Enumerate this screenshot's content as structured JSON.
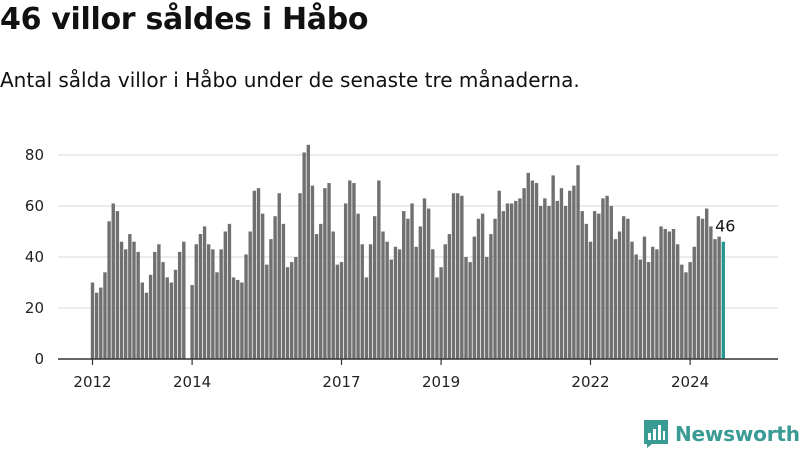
{
  "title": "46 villor såldes i Håbo",
  "subtitle": "Antal sålda villor i Håbo under de senaste tre månaderna.",
  "brand": {
    "name": "Newsworthy",
    "color": "#3a9a94",
    "icon": "newsworthy-logo-icon"
  },
  "colors": {
    "bar": "#707070",
    "highlight": "#2a9690",
    "grid": "#d9d9d9",
    "axis": "#333333"
  },
  "chart_data": {
    "type": "bar",
    "title": "",
    "xlabel": "",
    "ylabel": "",
    "ylim": [
      0,
      85
    ],
    "yticks": [
      0,
      20,
      40,
      60,
      80
    ],
    "grid": true,
    "x_start": "2012-01",
    "frequency": "monthly",
    "xticks": [
      {
        "label": "2012",
        "index": 0
      },
      {
        "label": "2014",
        "index": 24
      },
      {
        "label": "2017",
        "index": 60
      },
      {
        "label": "2019",
        "index": 84
      },
      {
        "label": "2022",
        "index": 120
      },
      {
        "label": "2024",
        "index": 144
      }
    ],
    "values": [
      30,
      26,
      28,
      34,
      54,
      61,
      58,
      46,
      43,
      49,
      46,
      42,
      30,
      26,
      33,
      42,
      45,
      38,
      32,
      30,
      35,
      42,
      46,
      null,
      29,
      45,
      49,
      52,
      45,
      43,
      34,
      43,
      50,
      53,
      32,
      31,
      30,
      41,
      50,
      66,
      67,
      57,
      37,
      47,
      56,
      65,
      53,
      36,
      38,
      40,
      65,
      81,
      84,
      68,
      49,
      53,
      67,
      69,
      50,
      37,
      38,
      61,
      70,
      69,
      57,
      45,
      32,
      45,
      56,
      70,
      50,
      46,
      39,
      44,
      43,
      58,
      55,
      61,
      44,
      52,
      63,
      59,
      43,
      32,
      36,
      45,
      49,
      65,
      65,
      64,
      40,
      38,
      48,
      55,
      57,
      40,
      49,
      55,
      66,
      58,
      61,
      61,
      62,
      63,
      67,
      73,
      70,
      69,
      60,
      63,
      60,
      72,
      62,
      67,
      60,
      66,
      68,
      76,
      58,
      53,
      46,
      58,
      57,
      63,
      64,
      60,
      47,
      50,
      56,
      55,
      46,
      41,
      39,
      48,
      38,
      44,
      43,
      52,
      51,
      50,
      51,
      45,
      37,
      34,
      38,
      44,
      56,
      55,
      59,
      52,
      47,
      48,
      46
    ],
    "highlight": {
      "index": 152,
      "value": 46,
      "label": "46"
    }
  }
}
